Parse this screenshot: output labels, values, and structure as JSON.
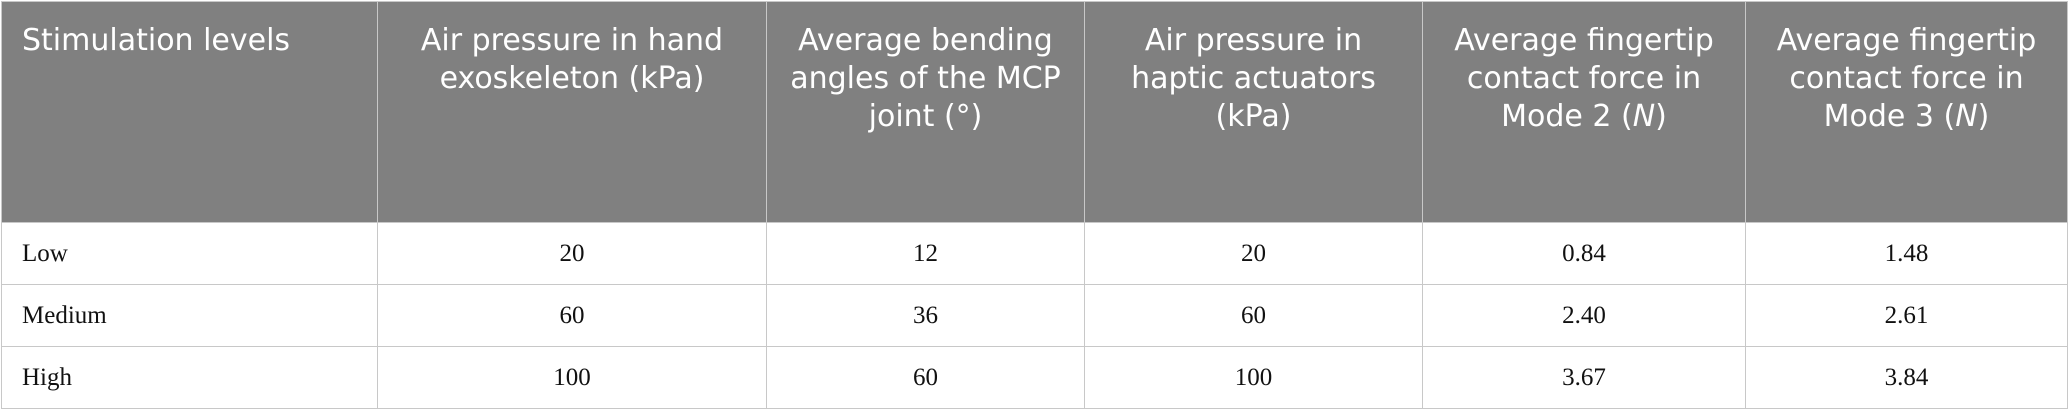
{
  "table": {
    "header": [
      [
        "Stimulation levels"
      ],
      [
        "Air pressure in hand exoskeleton (kPa)"
      ],
      [
        "Average bending angles of the MCP joint (°)"
      ],
      [
        "Air pressure in haptic actuators (kPa)"
      ],
      [
        "Average fingertip contact force in Mode 2 (",
        "N",
        ")"
      ],
      [
        "Average fingertip contact force in Mode 3 (",
        "N",
        ")"
      ]
    ],
    "rows": [
      [
        "Low",
        "20",
        "12",
        "20",
        "0.84",
        "1.48"
      ],
      [
        "Medium",
        "60",
        "36",
        "60",
        "2.40",
        "2.61"
      ],
      [
        "High",
        "100",
        "60",
        "100",
        "3.67",
        "3.84"
      ]
    ]
  }
}
